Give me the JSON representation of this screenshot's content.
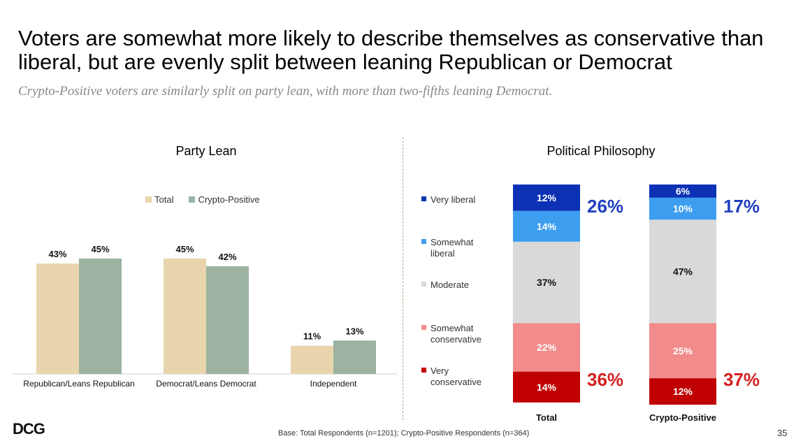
{
  "header": {
    "title": "Voters are somewhat more likely to describe themselves as conservative than liberal, but are evenly split between leaning Republican or Democrat",
    "subtitle": "Crypto-Positive voters are similarly split on party lean, with more than two-fifths leaning Democrat."
  },
  "footer": {
    "base_note": "Base: Total Respondents (n=1201); Crypto-Positive Respondents (n=364)",
    "page_number": "35",
    "logo_text": "DCG"
  },
  "colors": {
    "total_bar": "#e9d5ad",
    "crypto_bar": "#9bb3a0",
    "very_liberal": "#0c31b5",
    "somewhat_liberal": "#3d9ef0",
    "moderate": "#d9d9d9",
    "somewhat_conservative": "#f28b8b",
    "very_conservative": "#c00000",
    "liberal_total_text": "#1f3fbf",
    "conservative_total_text": "#d42020"
  },
  "chart_data": [
    {
      "type": "bar",
      "title": "Party Lean",
      "categories": [
        "Republican/Leans Republican",
        "Democrat/Leans Democrat",
        "Independent"
      ],
      "series": [
        {
          "name": "Total",
          "values": [
            43,
            45,
            11
          ],
          "labels": [
            "43%",
            "45%",
            "11%"
          ]
        },
        {
          "name": "Crypto-Positive",
          "values": [
            45,
            42,
            13
          ],
          "labels": [
            "45%",
            "42%",
            "13%"
          ]
        }
      ],
      "ylim": [
        0,
        50
      ],
      "legend": "top-center"
    },
    {
      "type": "stacked_bar",
      "title": "Political Philosophy",
      "categories": [
        "Total",
        "Crypto-Positive"
      ],
      "segments": [
        {
          "name": "Very liberal",
          "values": [
            12,
            6
          ],
          "labels": [
            "12%",
            "6%"
          ]
        },
        {
          "name": "Somewhat liberal",
          "values": [
            14,
            10
          ],
          "labels": [
            "14%",
            "10%"
          ]
        },
        {
          "name": "Moderate",
          "values": [
            37,
            47
          ],
          "labels": [
            "37%",
            "47%"
          ]
        },
        {
          "name": "Somewhat conservative",
          "values": [
            22,
            25
          ],
          "labels": [
            "22%",
            "25%"
          ]
        },
        {
          "name": "Very conservative",
          "values": [
            14,
            12
          ],
          "labels": [
            "14%",
            "12%"
          ]
        }
      ],
      "legend_labels": [
        [
          "Very liberal"
        ],
        [
          "Somewhat",
          "liberal"
        ],
        [
          "Moderate"
        ],
        [
          "Somewhat",
          "conservative"
        ],
        [
          "Very",
          "conservative"
        ]
      ],
      "totals": {
        "liberal": [
          "26%",
          "17%"
        ],
        "conservative": [
          "36%",
          "37%"
        ]
      },
      "legend": "left"
    }
  ]
}
